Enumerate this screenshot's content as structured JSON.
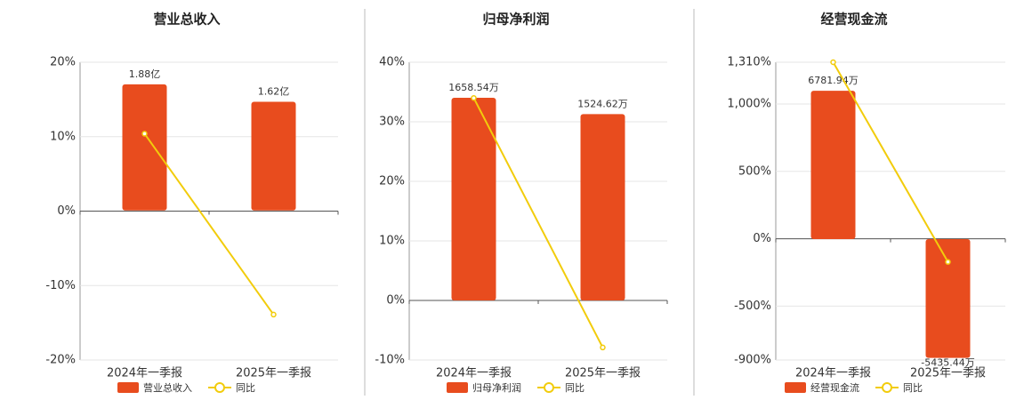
{
  "chart_data": [
    {
      "type": "bar",
      "title": "营业总收入",
      "categories": [
        "2024年一季报",
        "2025年一季报"
      ],
      "series": [
        {
          "name": "营业总收入",
          "color": "#e84c1e",
          "axis": "y2",
          "values": [
            1.88,
            1.62
          ],
          "value_labels": [
            "1.88亿",
            "1.62亿"
          ]
        },
        {
          "name": "同比",
          "type": "line",
          "color": "#f2cc0c",
          "values": [
            10.4,
            -13.9
          ]
        }
      ],
      "ylim": [
        -20,
        20
      ],
      "yticks": [
        {
          "value": -20,
          "label": "-20%"
        },
        {
          "value": -10,
          "label": "-10%"
        },
        {
          "value": 0,
          "label": "0%"
        },
        {
          "value": 10,
          "label": "10%"
        },
        {
          "value": 20,
          "label": "20%"
        }
      ],
      "y2lim": [
        -2.23,
        2.21
      ],
      "grid": true
    },
    {
      "type": "bar",
      "title": "归母净利润",
      "categories": [
        "2024年一季报",
        "2025年一季报"
      ],
      "series": [
        {
          "name": "归母净利润",
          "color": "#e84c1e",
          "axis": "y2",
          "values": [
            1658.54,
            1524.62
          ],
          "value_labels": [
            "1658.54万",
            "1524.62万"
          ]
        },
        {
          "name": "同比",
          "type": "line",
          "color": "#f2cc0c",
          "values": [
            34.0,
            -7.9
          ]
        }
      ],
      "ylim": [
        -10,
        40
      ],
      "yticks": [
        {
          "value": -10,
          "label": "-10%"
        },
        {
          "value": 0,
          "label": "0%"
        },
        {
          "value": 10,
          "label": "10%"
        },
        {
          "value": 20,
          "label": "20%"
        },
        {
          "value": 30,
          "label": "30%"
        },
        {
          "value": 40,
          "label": "40%"
        }
      ],
      "y2lim": [
        -487,
        1949
      ],
      "grid": true
    },
    {
      "type": "bar",
      "title": "经营现金流",
      "categories": [
        "2024年一季报",
        "2025年一季报"
      ],
      "series": [
        {
          "name": "经营现金流",
          "color": "#e84c1e",
          "axis": "y2",
          "values": [
            6781.94,
            -5435.44
          ],
          "value_labels": [
            "6781.94万",
            "-5435.44万"
          ]
        },
        {
          "name": "同比",
          "type": "line",
          "color": "#f2cc0c",
          "values": [
            1310,
            -172
          ]
        }
      ],
      "ylim": [
        -900,
        1310
      ],
      "yticks": [
        {
          "value": -900,
          "label": "-900%"
        },
        {
          "value": -500,
          "label": "-500%"
        },
        {
          "value": 0,
          "label": "0%"
        },
        {
          "value": 500,
          "label": "500%"
        },
        {
          "value": 1000,
          "label": "1,000%"
        },
        {
          "value": 1310,
          "label": "1,310%"
        }
      ],
      "y2lim": [
        -5530,
        8090
      ],
      "grid": true
    }
  ]
}
